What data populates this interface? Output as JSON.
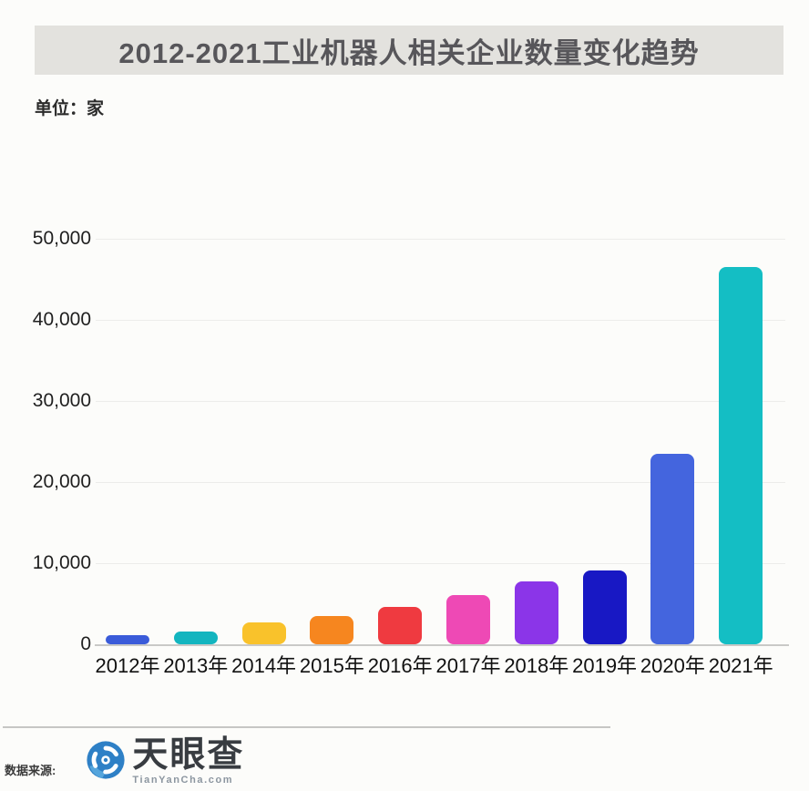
{
  "title": "2012-2021工业机器人相关企业数量变化趋势",
  "unit_label": "单位：家",
  "footer": {
    "source_label": "数据来源:",
    "logo_text": "天眼查",
    "logo_subtext": "TianYanCha.com"
  },
  "colors": {
    "banner_bg": "#e3e2de",
    "banner_text": "#57565a",
    "gridline": "#ececea",
    "axis_line": "#c9c9c7",
    "logo_blue": "#2e80c6",
    "logo_blue_light": "#55a5dc"
  },
  "chart_data": {
    "type": "bar",
    "title": "2012-2021工业机器人相关企业数量变化趋势",
    "ylabel": "单位：家",
    "categories": [
      "2012年",
      "2013年",
      "2014年",
      "2015年",
      "2016年",
      "2017年",
      "2018年",
      "2019年",
      "2020年",
      "2021年"
    ],
    "values": [
      1100,
      1600,
      2700,
      3500,
      4600,
      6100,
      7700,
      9100,
      23500,
      46500
    ],
    "bar_colors": [
      "#3a5bd9",
      "#13b5bf",
      "#f9c22b",
      "#f6861f",
      "#ef3a40",
      "#ee49b5",
      "#8b35e8",
      "#1818c4",
      "#4465de",
      "#14bec4"
    ],
    "ylim": [
      0,
      50000
    ],
    "yticks": [
      0,
      10000,
      20000,
      30000,
      40000,
      50000
    ],
    "ytick_labels": [
      "0",
      "10,000",
      "20,000",
      "30,000",
      "40,000",
      "50,000"
    ],
    "grid": true,
    "legend": false
  }
}
